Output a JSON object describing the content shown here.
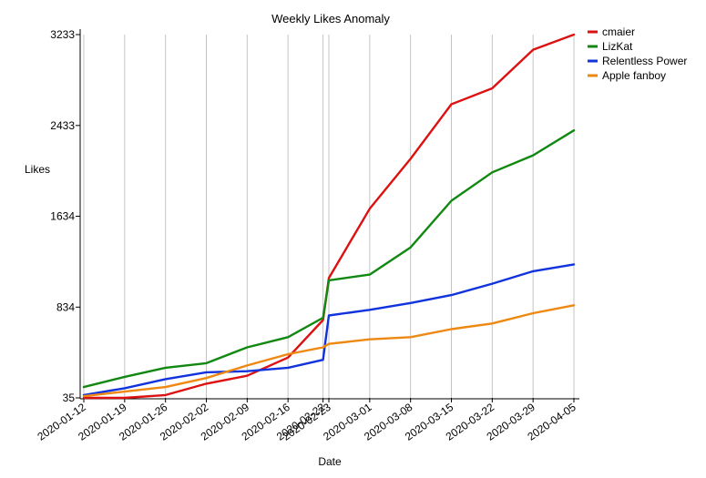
{
  "chart_data": {
    "type": "line",
    "title": "Weekly Likes Anomaly",
    "xlabel": "Date",
    "ylabel": "Likes",
    "x": [
      "2020-01-12",
      "2020-01-19",
      "2020-01-26",
      "2020-02-02",
      "2020-02-09",
      "2020-02-16",
      "2020-02-22",
      "2020-02-23",
      "2020-03-01",
      "2020-03-08",
      "2020-03-15",
      "2020-03-22",
      "2020-03-29",
      "2020-04-05"
    ],
    "x_ticks": [
      "2020-01-12",
      "2020-01-19",
      "2020-01-26",
      "2020-02-02",
      "2020-02-09",
      "2020-02-16",
      "2020-02-22",
      "2020-02-23",
      "2020-03-01",
      "2020-03-08",
      "2020-03-15",
      "2020-03-22",
      "2020-03-29",
      "2020-04-05"
    ],
    "y_ticks": [
      35,
      834,
      1634,
      2433,
      3233
    ],
    "ylim": [
      35,
      3233
    ],
    "grid": "vertical",
    "legend_position": "top-right",
    "series": [
      {
        "name": "cmaier",
        "color": "#dd1111",
        "values": [
          35,
          35,
          60,
          160,
          230,
          390,
          720,
          1090,
          1700,
          2140,
          2620,
          2760,
          3100,
          3233
        ]
      },
      {
        "name": "LizKat",
        "color": "#118811",
        "values": [
          130,
          220,
          300,
          340,
          480,
          570,
          740,
          1070,
          1120,
          1360,
          1770,
          2020,
          2170,
          2390
        ]
      },
      {
        "name": "Relentless Power",
        "color": "#1133dd",
        "values": [
          60,
          120,
          200,
          260,
          270,
          300,
          370,
          760,
          810,
          870,
          940,
          1040,
          1150,
          1210
        ]
      },
      {
        "name": "Apple fanboy",
        "color": "#ee8811",
        "values": [
          50,
          90,
          130,
          210,
          320,
          420,
          480,
          510,
          550,
          570,
          640,
          690,
          780,
          850
        ]
      }
    ]
  }
}
